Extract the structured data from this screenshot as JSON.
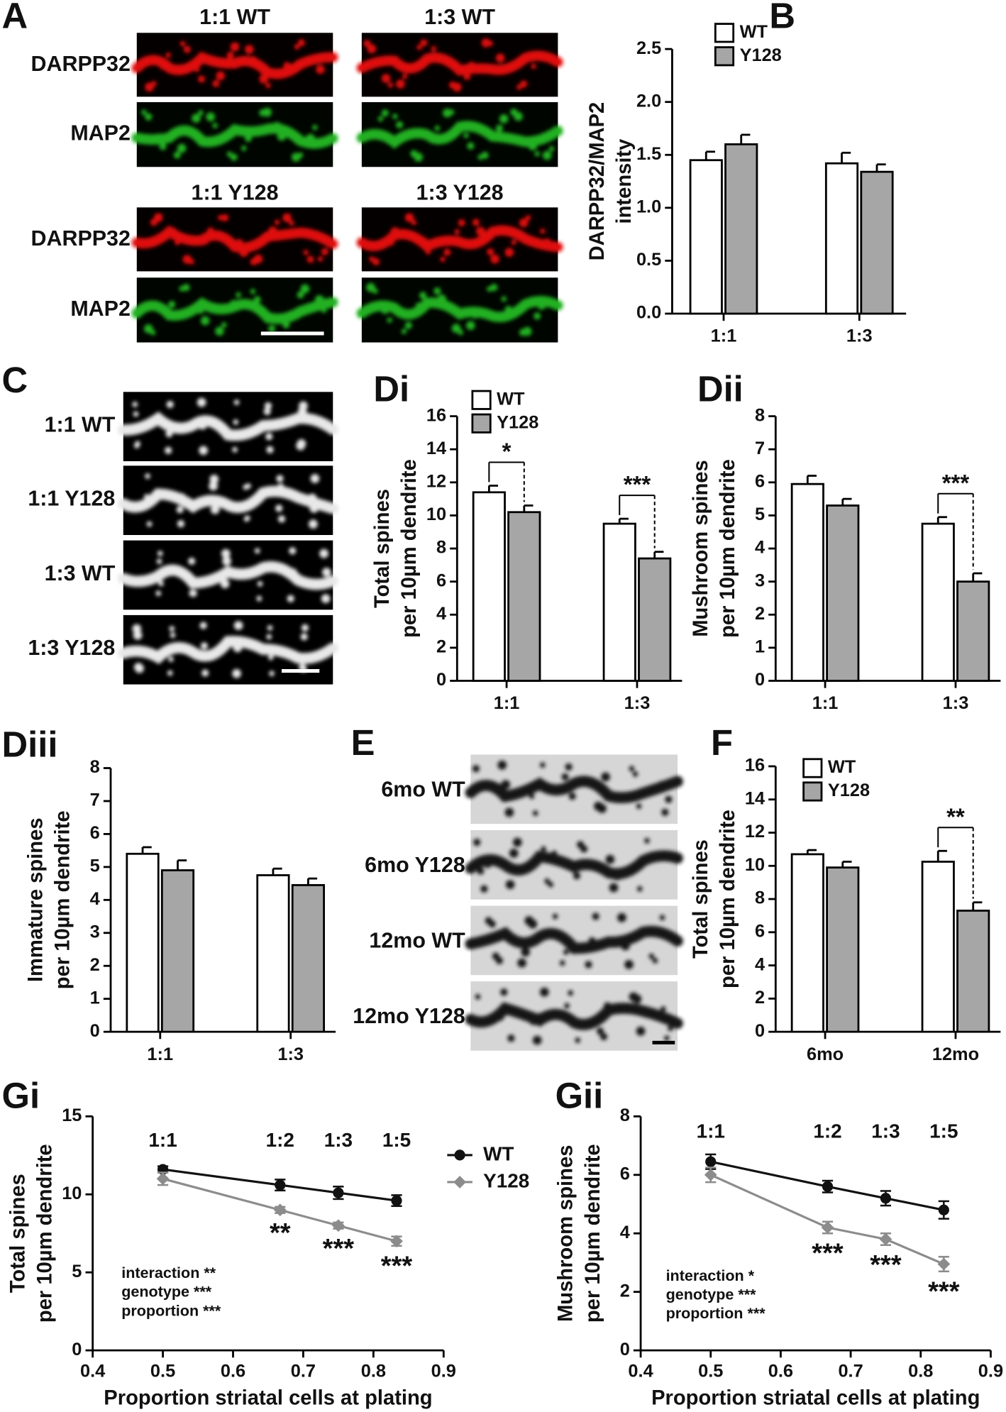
{
  "figure": {
    "A": {
      "label": "A",
      "titles": [
        "1:1 WT",
        "1:3 WT",
        "1:1 Y128",
        "1:3 Y128"
      ],
      "channels": [
        "DARPP32",
        "MAP2"
      ]
    },
    "C": {
      "label": "C",
      "rows": [
        "1:1 WT",
        "1:1 Y128",
        "1:3 WT",
        "1:3 Y128"
      ]
    },
    "E": {
      "label": "E",
      "rows": [
        "6mo WT",
        "6mo Y128",
        "12mo WT",
        "12mo Y128"
      ]
    }
  },
  "chart_data": [
    {
      "type": "bar",
      "label": "B",
      "ylabel": [
        "DARPP32/MAP2",
        "intensity"
      ],
      "categories": [
        "1:1",
        "1:3"
      ],
      "ylim": [
        0,
        2.5
      ],
      "yticks": [
        {
          "value": 0,
          "label": "0.0"
        },
        0.5,
        {
          "value": 1,
          "label": "1.0"
        },
        1.5,
        {
          "value": 2,
          "label": "2.0"
        },
        2.5
      ],
      "legend": true,
      "series": [
        {
          "name": "WT",
          "color": "#ffffff",
          "values": [
            1.45,
            1.42
          ],
          "errors": [
            0.08,
            0.1
          ]
        },
        {
          "name": "Y128",
          "color": "#a6a6a6",
          "values": [
            1.6,
            1.34
          ],
          "errors": [
            0.09,
            0.07
          ]
        }
      ]
    },
    {
      "type": "bar",
      "label": "Di",
      "ylabel": [
        "Total spines",
        "per 10µm dendrite"
      ],
      "categories": [
        "1:1",
        "1:3"
      ],
      "ylim": [
        0,
        16
      ],
      "yticks": [
        0,
        2,
        4,
        6,
        8,
        10,
        12,
        14,
        16
      ],
      "legend": true,
      "significance": [
        "*",
        "***"
      ],
      "series": [
        {
          "name": "WT",
          "color": "#ffffff",
          "values": [
            11.4,
            9.5
          ],
          "errors": [
            0.4,
            0.3
          ]
        },
        {
          "name": "Y128",
          "color": "#a6a6a6",
          "values": [
            10.2,
            7.4
          ],
          "errors": [
            0.4,
            0.4
          ]
        }
      ]
    },
    {
      "type": "bar",
      "label": "Dii",
      "ylabel": [
        "Mushroom spines",
        "per 10µm dendrite"
      ],
      "categories": [
        "1:1",
        "1:3"
      ],
      "ylim": [
        0,
        8
      ],
      "yticks": [
        0,
        1,
        2,
        3,
        4,
        5,
        6,
        7,
        8
      ],
      "legend": false,
      "significance": [
        null,
        "***"
      ],
      "series": [
        {
          "name": "WT",
          "color": "#ffffff",
          "values": [
            5.95,
            4.75
          ],
          "errors": [
            0.25,
            0.2
          ]
        },
        {
          "name": "Y128",
          "color": "#a6a6a6",
          "values": [
            5.3,
            3.0
          ],
          "errors": [
            0.2,
            0.25
          ]
        }
      ]
    },
    {
      "type": "bar",
      "label": "Diii",
      "ylabel": [
        "Immature spines",
        "per 10µm dendrite"
      ],
      "categories": [
        "1:1",
        "1:3"
      ],
      "ylim": [
        0,
        8
      ],
      "yticks": [
        0,
        1,
        2,
        3,
        4,
        5,
        6,
        7,
        8
      ],
      "legend": false,
      "series": [
        {
          "name": "WT",
          "color": "#ffffff",
          "values": [
            5.4,
            4.75
          ],
          "errors": [
            0.2,
            0.2
          ]
        },
        {
          "name": "Y128",
          "color": "#a6a6a6",
          "values": [
            4.9,
            4.45
          ],
          "errors": [
            0.3,
            0.2
          ]
        }
      ]
    },
    {
      "type": "bar",
      "label": "F",
      "ylabel": [
        "Total spines",
        "per 10µm dendrite"
      ],
      "categories": [
        "6mo",
        "12mo"
      ],
      "ylim": [
        0,
        16
      ],
      "yticks": [
        0,
        2,
        4,
        6,
        8,
        10,
        12,
        14,
        16
      ],
      "legend": true,
      "significance": [
        null,
        "**"
      ],
      "series": [
        {
          "name": "WT",
          "color": "#ffffff",
          "values": [
            10.7,
            10.25
          ],
          "errors": [
            0.25,
            0.65
          ]
        },
        {
          "name": "Y128",
          "color": "#a6a6a6",
          "values": [
            9.9,
            7.3
          ],
          "errors": [
            0.35,
            0.5
          ]
        }
      ]
    },
    {
      "type": "line",
      "label": "Gi",
      "ylabel": [
        "Total spines",
        "per 10µm dendrite"
      ],
      "xlabel": "Proportion striatal cells at plating",
      "x": [
        0.5,
        0.667,
        0.75,
        0.833
      ],
      "point_labels": [
        "1:1",
        "1:2",
        "1:3",
        "1:5"
      ],
      "xlim": [
        0.4,
        0.9
      ],
      "xticks": [
        0.4,
        0.5,
        0.6,
        0.7,
        0.8,
        0.9
      ],
      "ylim": [
        0,
        15
      ],
      "yticks": [
        0,
        5,
        10,
        15
      ],
      "legend": true,
      "significance": [
        null,
        "**",
        "***",
        "***"
      ],
      "stats": [
        "interaction **",
        "genotype ***",
        "proportion ***"
      ],
      "series": [
        {
          "name": "WT",
          "color": "#111111",
          "values": [
            11.6,
            10.6,
            10.1,
            9.6
          ],
          "errors": [
            0.2,
            0.35,
            0.4,
            0.35
          ]
        },
        {
          "name": "Y128",
          "color": "#8c8c8c",
          "values": [
            11.0,
            9.0,
            8.0,
            7.0
          ],
          "errors": [
            0.4,
            0.2,
            0.2,
            0.3
          ]
        }
      ]
    },
    {
      "type": "line",
      "label": "Gii",
      "ylabel": [
        "Mushroom spines",
        "per 10µm dendrite"
      ],
      "xlabel": "Proportion striatal cells at plating",
      "x": [
        0.5,
        0.667,
        0.75,
        0.833
      ],
      "point_labels": [
        "1:1",
        "1:2",
        "1:3",
        "1:5"
      ],
      "xlim": [
        0.4,
        0.9
      ],
      "xticks": [
        0.4,
        0.5,
        0.6,
        0.7,
        0.8,
        0.9
      ],
      "ylim": [
        0,
        8
      ],
      "yticks": [
        0,
        2,
        4,
        6,
        8
      ],
      "legend": false,
      "significance": [
        null,
        "***",
        "***",
        "***"
      ],
      "stats": [
        "interaction *",
        "genotype ***",
        "proportion ***"
      ],
      "series": [
        {
          "name": "WT",
          "color": "#111111",
          "values": [
            6.45,
            5.6,
            5.2,
            4.8
          ],
          "errors": [
            0.25,
            0.2,
            0.25,
            0.3
          ]
        },
        {
          "name": "Y128",
          "color": "#8c8c8c",
          "values": [
            6.0,
            4.2,
            3.8,
            2.95
          ],
          "errors": [
            0.25,
            0.2,
            0.2,
            0.25
          ]
        }
      ]
    }
  ]
}
